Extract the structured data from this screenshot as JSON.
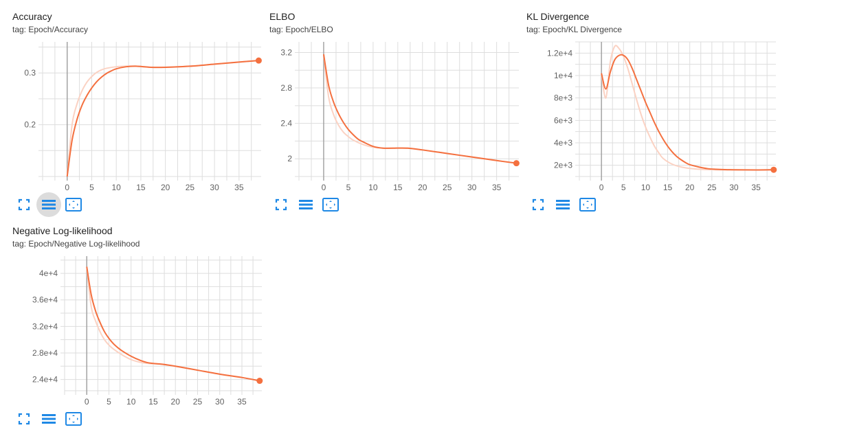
{
  "cards": [
    {
      "title": "Accuracy",
      "tag": "tag: Epoch/Accuracy",
      "active_button": 1
    },
    {
      "title": "ELBO",
      "tag": "tag: Epoch/ELBO",
      "active_button": -1
    },
    {
      "title": "KL Divergence",
      "tag": "tag: Epoch/KL Divergence",
      "active_button": -1
    },
    {
      "title": "Negative Log-likelihood",
      "tag": "tag: Epoch/Negative Log-likelihood",
      "active_button": -1
    }
  ],
  "toolbar_icons": [
    "fullscreen-icon",
    "log-scale-icon",
    "fit-domain-icon"
  ],
  "colors": {
    "line": "#f4703f",
    "smoothed_raw": "#fbd2c3",
    "grid": "#dddddd",
    "axis_zero": "#9e9e9e",
    "icon": "#1e88e5"
  },
  "chart_data": [
    {
      "type": "line",
      "title": "Accuracy",
      "xlim": [
        -5,
        39.5
      ],
      "ylim": [
        0.1,
        0.36
      ],
      "xticks": [
        0,
        5,
        10,
        15,
        20,
        25,
        30,
        35
      ],
      "yticks": [
        0.2,
        0.3
      ],
      "ytick_labels": [
        "0.2",
        "0.3"
      ],
      "series": [
        {
          "x": [
            0,
            1,
            2,
            3,
            4,
            5,
            6,
            7,
            8,
            9,
            10,
            12,
            14,
            17,
            20,
            25,
            30,
            35,
            39
          ],
          "values": [
            0.1,
            0.17,
            0.21,
            0.237,
            0.256,
            0.271,
            0.283,
            0.292,
            0.299,
            0.304,
            0.308,
            0.312,
            0.313,
            0.311,
            0.311,
            0.313,
            0.317,
            0.321,
            0.324
          ]
        },
        {
          "x": [
            0,
            1,
            2,
            3,
            4,
            5,
            6,
            7,
            8,
            10,
            12,
            14,
            17,
            20,
            25,
            30,
            35,
            39
          ],
          "values": [
            0.1,
            0.2,
            0.24,
            0.265,
            0.282,
            0.293,
            0.301,
            0.306,
            0.309,
            0.312,
            0.313,
            0.313,
            0.311,
            0.311,
            0.313,
            0.317,
            0.321,
            0.324
          ]
        }
      ]
    },
    {
      "type": "line",
      "title": "ELBO",
      "xlim": [
        -5,
        39.5
      ],
      "ylim": [
        1.8,
        3.32
      ],
      "xticks": [
        0,
        5,
        10,
        15,
        20,
        25,
        30,
        35
      ],
      "yticks": [
        2,
        2.4,
        2.8,
        3.2
      ],
      "ytick_labels": [
        "2",
        "2.4",
        "2.8",
        "3.2"
      ],
      "series": [
        {
          "x": [
            0,
            1,
            2,
            3,
            4,
            5,
            6,
            7,
            8,
            10,
            12,
            14,
            17,
            20,
            25,
            30,
            35,
            39
          ],
          "values": [
            3.18,
            2.83,
            2.64,
            2.51,
            2.41,
            2.33,
            2.27,
            2.22,
            2.19,
            2.14,
            2.12,
            2.12,
            2.12,
            2.1,
            2.06,
            2.02,
            1.98,
            1.95
          ]
        },
        {
          "x": [
            0,
            1,
            2,
            3,
            4,
            5,
            6,
            8,
            10,
            12,
            14,
            17,
            20,
            25,
            30,
            35,
            39
          ],
          "values": [
            3.18,
            2.7,
            2.5,
            2.38,
            2.3,
            2.25,
            2.21,
            2.16,
            2.13,
            2.12,
            2.12,
            2.12,
            2.1,
            2.06,
            2.02,
            1.98,
            1.95
          ]
        }
      ]
    },
    {
      "type": "line",
      "title": "KL Divergence",
      "xlim": [
        -5,
        39.5
      ],
      "ylim": [
        1000,
        13000
      ],
      "xticks": [
        0,
        5,
        10,
        15,
        20,
        25,
        30,
        35
      ],
      "yticks": [
        2000,
        4000,
        6000,
        8000,
        10000,
        12000
      ],
      "ytick_labels": [
        "2e+3",
        "4e+3",
        "6e+3",
        "8e+3",
        "1e+4",
        "1.2e+4"
      ],
      "series": [
        {
          "x": [
            0,
            1,
            2,
            3,
            4,
            5,
            6,
            7,
            8,
            9,
            10,
            11,
            12,
            13,
            14,
            15,
            16,
            17,
            18,
            19,
            20,
            22,
            24,
            26,
            28,
            30,
            35,
            39
          ],
          "values": [
            10200,
            8800,
            10300,
            11400,
            11800,
            11800,
            11400,
            10600,
            9600,
            8600,
            7600,
            6700,
            5800,
            5000,
            4300,
            3700,
            3200,
            2800,
            2500,
            2250,
            2050,
            1850,
            1700,
            1640,
            1610,
            1600,
            1580,
            1600
          ]
        },
        {
          "x": [
            0,
            1,
            2,
            3,
            4,
            5,
            6,
            7,
            8,
            9,
            10,
            11,
            12,
            13,
            14,
            16,
            18,
            20,
            22,
            24,
            26,
            28,
            30,
            35,
            39
          ],
          "values": [
            10200,
            8000,
            11200,
            12600,
            12400,
            11700,
            10600,
            9200,
            7800,
            6500,
            5400,
            4500,
            3700,
            3100,
            2600,
            2100,
            1850,
            1720,
            1650,
            1610,
            1600,
            1590,
            1590,
            1580,
            1600
          ]
        }
      ]
    },
    {
      "type": "line",
      "title": "Negative Log-likelihood",
      "xlim": [
        -5,
        39.5
      ],
      "ylim": [
        22300,
        42600
      ],
      "xticks": [
        0,
        5,
        10,
        15,
        20,
        25,
        30,
        35
      ],
      "yticks": [
        24000,
        28000,
        32000,
        36000,
        40000
      ],
      "ytick_labels": [
        "2.4e+4",
        "2.8e+4",
        "3.2e+4",
        "3.6e+4",
        "4e+4"
      ],
      "series": [
        {
          "x": [
            0,
            1,
            2,
            3,
            4,
            5,
            6,
            7,
            8,
            10,
            12,
            14,
            17,
            20,
            25,
            30,
            35,
            39
          ],
          "values": [
            41000,
            36800,
            34300,
            32600,
            31200,
            30200,
            29400,
            28800,
            28300,
            27500,
            26900,
            26500,
            26300,
            26000,
            25400,
            24800,
            24300,
            23800
          ]
        },
        {
          "x": [
            0,
            1,
            2,
            3,
            4,
            5,
            6,
            8,
            10,
            12,
            14,
            17,
            20,
            25,
            30,
            35,
            39
          ],
          "values": [
            41000,
            35000,
            32800,
            31200,
            30000,
            29200,
            28600,
            27700,
            27000,
            26600,
            26400,
            26300,
            26000,
            25400,
            24800,
            24300,
            23800
          ]
        }
      ]
    }
  ]
}
